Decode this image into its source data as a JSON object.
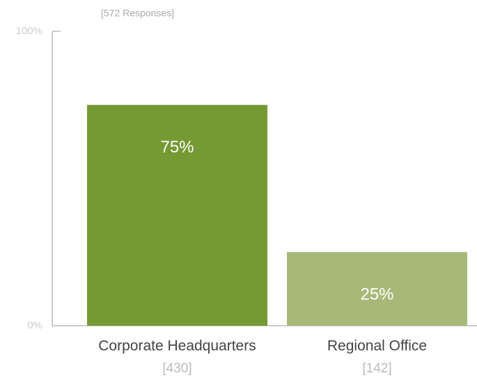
{
  "chart_data": {
    "type": "bar",
    "subtitle": "[572 Responses]",
    "categories": [
      "Corporate Headquarters",
      "Regional Office"
    ],
    "category_notes": [
      "[430]",
      "[142]"
    ],
    "values": [
      75,
      25
    ],
    "value_labels": [
      "75%",
      "25%"
    ],
    "colors": [
      "#759933",
      "#a8b878"
    ],
    "ylim": [
      0,
      100
    ],
    "yticks": [
      {
        "value": 0,
        "label": "0%"
      },
      {
        "value": 100,
        "label": "100%"
      }
    ],
    "grid": false
  }
}
